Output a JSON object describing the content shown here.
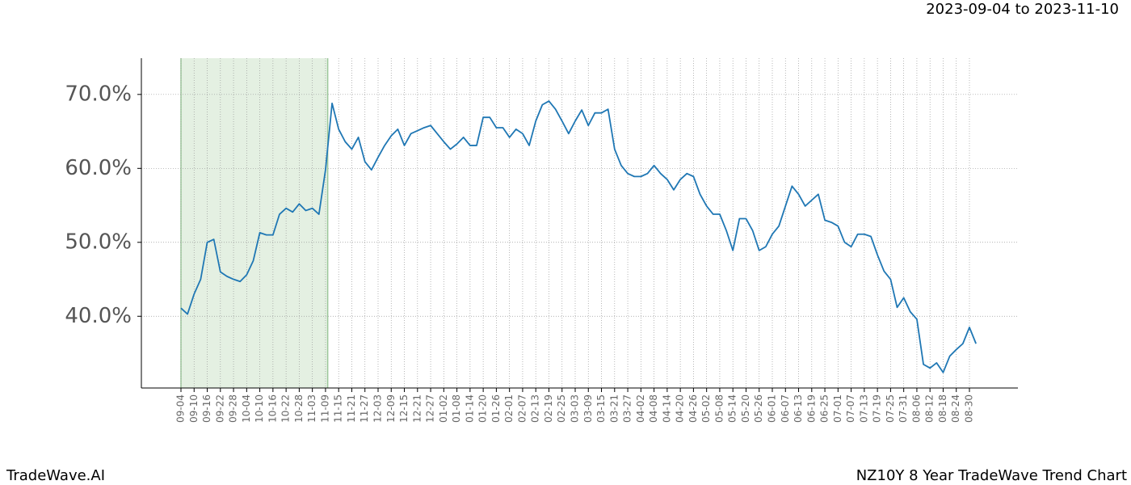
{
  "chart_data": {
    "type": "line",
    "header": {
      "start": "2023-09-04",
      "sep": "to",
      "end": "2023-11-10"
    },
    "brand": "TradeWave.AI",
    "title": "NZ10Y 8 Year TradeWave Trend Chart",
    "categories": [
      "09-04",
      null,
      "09-10",
      null,
      "09-16",
      null,
      "09-22",
      null,
      "09-28",
      null,
      "10-04",
      null,
      "10-10",
      null,
      "10-16",
      null,
      "10-22",
      null,
      "10-28",
      null,
      "11-03",
      null,
      "11-09",
      null,
      "11-15",
      null,
      "11-21",
      null,
      "11-27",
      null,
      "12-03",
      null,
      "12-09",
      null,
      "12-15",
      null,
      "12-21",
      null,
      "12-27",
      null,
      "01-02",
      null,
      "01-08",
      null,
      "01-14",
      null,
      "01-20",
      null,
      "01-26",
      null,
      "02-01",
      null,
      "02-07",
      null,
      "02-13",
      null,
      "02-19",
      null,
      "02-25",
      null,
      "03-03",
      null,
      "03-09",
      null,
      "03-15",
      null,
      "03-21",
      null,
      "03-27",
      null,
      "04-02",
      null,
      "04-08",
      null,
      "04-14",
      null,
      "04-20",
      null,
      "04-26",
      null,
      "05-02",
      null,
      "05-08",
      null,
      "05-14",
      null,
      "05-20",
      null,
      "05-26",
      null,
      "06-01",
      null,
      "06-07",
      null,
      "06-13",
      null,
      "06-19",
      null,
      "06-25",
      null,
      "07-01",
      null,
      "07-07",
      null,
      "07-13",
      null,
      "07-19",
      null,
      "07-25",
      null,
      "07-31",
      null,
      "08-06",
      null,
      "08-12",
      null,
      "08-18",
      null,
      "08-24",
      null,
      "08-30",
      null
    ],
    "series": [
      {
        "color": "#1f77b4",
        "values": [
          41.1,
          40.3,
          43.0,
          45.0,
          50.0,
          50.4,
          46.0,
          45.4,
          45.0,
          44.7,
          45.6,
          47.5,
          51.3,
          51.0,
          51.0,
          53.8,
          54.6,
          54.1,
          55.2,
          54.3,
          54.6,
          53.8,
          59.8,
          68.8,
          65.3,
          63.6,
          62.6,
          64.2,
          60.9,
          59.8,
          61.5,
          63.1,
          64.4,
          65.3,
          63.1,
          64.7,
          65.1,
          65.5,
          65.8,
          64.7,
          63.6,
          62.6,
          63.3,
          64.2,
          63.1,
          63.1,
          66.9,
          66.9,
          65.5,
          65.5,
          64.2,
          65.3,
          64.7,
          63.1,
          66.4,
          68.6,
          69.1,
          68.0,
          66.4,
          64.7,
          66.4,
          67.9,
          65.8,
          67.5,
          67.5,
          68.0,
          62.6,
          60.4,
          59.3,
          58.9,
          58.9,
          59.3,
          60.4,
          59.3,
          58.5,
          57.1,
          58.5,
          59.3,
          58.9,
          56.5,
          54.9,
          53.8,
          53.8,
          51.6,
          48.9,
          53.2,
          53.2,
          51.6,
          48.9,
          49.4,
          51.1,
          52.2,
          54.9,
          57.6,
          56.5,
          54.9,
          55.7,
          56.5,
          53.0,
          52.7,
          52.2,
          50.0,
          49.4,
          51.1,
          51.1,
          50.8,
          48.3,
          46.1,
          45.0,
          41.2,
          42.5,
          40.6,
          39.6,
          33.5,
          33.0,
          33.7,
          32.4,
          34.6,
          35.5,
          36.3,
          38.5,
          36.3
        ]
      }
    ],
    "ylim": [
      30.3,
      74.9
    ],
    "yticks": [
      {
        "value": 40,
        "label": "40.0%"
      },
      {
        "value": 50,
        "label": "50.0%"
      },
      {
        "value": 60,
        "label": "60.0%"
      },
      {
        "value": 70,
        "label": "70.0%"
      }
    ],
    "grid": true,
    "highlight_color": "#d9e9d5"
  }
}
